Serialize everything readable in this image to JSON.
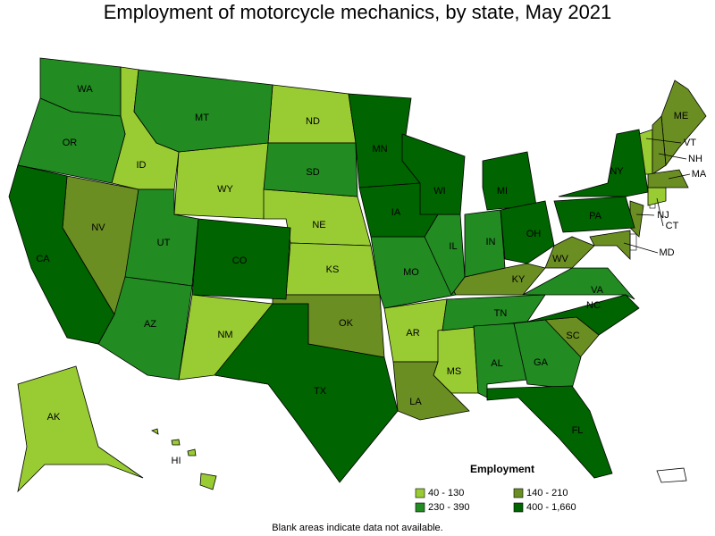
{
  "title": "Employment of motorcycle mechanics, by state, May 2021",
  "legend": {
    "title": "Employment",
    "items": [
      {
        "label": "40 - 130",
        "color": "#99cc33",
        "states": [
          "AK",
          "HI",
          "ID",
          "WY",
          "ND",
          "NE",
          "KS",
          "NM",
          "AR",
          "MS",
          "VT",
          "CT"
        ]
      },
      {
        "label": "140 - 210",
        "color": "#6b8e23",
        "states": [
          "NV",
          "OK",
          "LA",
          "SC",
          "KY",
          "WV",
          "ME",
          "NH",
          "MA",
          "NJ",
          "MD"
        ]
      },
      {
        "label": "230 - 390",
        "color": "#228b22",
        "states": [
          "WA",
          "OR",
          "MT",
          "SD",
          "UT",
          "AZ",
          "MO",
          "IL",
          "IN",
          "TN",
          "AL",
          "GA",
          "VA"
        ]
      },
      {
        "label": "400 - 1,660",
        "color": "#006400",
        "states": [
          "CA",
          "CO",
          "TX",
          "MN",
          "IA",
          "WI",
          "MI",
          "OH",
          "PA",
          "NY",
          "NC",
          "FL"
        ]
      }
    ]
  },
  "note": "Blank areas indicate data not available."
}
